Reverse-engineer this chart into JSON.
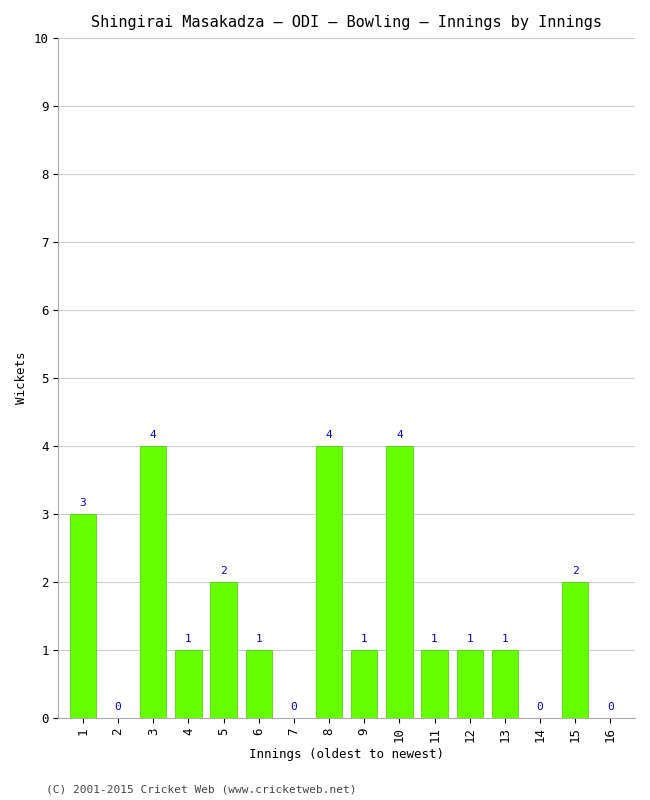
{
  "title": "Shingirai Masakadza – ODI – Bowling – Innings by Innings",
  "xlabel": "Innings (oldest to newest)",
  "ylabel": "Wickets",
  "innings": [
    1,
    2,
    3,
    4,
    5,
    6,
    7,
    8,
    9,
    10,
    11,
    12,
    13,
    14,
    15,
    16
  ],
  "wickets": [
    3,
    0,
    4,
    1,
    2,
    1,
    0,
    4,
    1,
    4,
    1,
    1,
    1,
    0,
    2,
    0
  ],
  "bar_color": "#66ff00",
  "bar_edge_color": "#44cc00",
  "label_color": "#0000cc",
  "ylim": [
    0,
    10
  ],
  "yticks": [
    0,
    1,
    2,
    3,
    4,
    5,
    6,
    7,
    8,
    9,
    10
  ],
  "xticks": [
    1,
    2,
    3,
    4,
    5,
    6,
    7,
    8,
    9,
    10,
    11,
    12,
    13,
    14,
    15,
    16
  ],
  "grid_color": "#cccccc",
  "background_color": "#ffffff",
  "title_fontsize": 11,
  "axis_label_fontsize": 9,
  "tick_fontsize": 9,
  "bar_label_fontsize": 8,
  "footer_text": "(C) 2001-2015 Cricket Web (www.cricketweb.net)",
  "footer_fontsize": 8,
  "footer_color": "#444444"
}
